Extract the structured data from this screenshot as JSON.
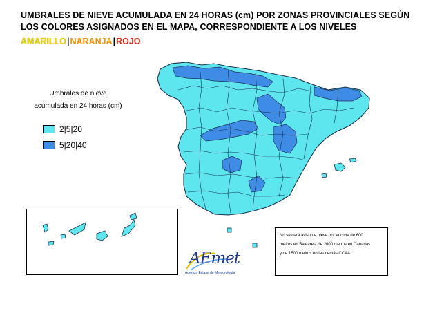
{
  "header": {
    "title": "UMBRALES DE NIEVE ACUMULADA EN 24 HORAS (cm) POR ZONAS PROVINCIALES SEGÚN LOS COLORES ASIGNADOS EN EL MAPA, CORRESPONDIENTE  A  LOS  NIVELES",
    "levels": [
      {
        "label": "AMARILLO",
        "color": "#e6d200"
      },
      {
        "label": "NARANJA",
        "color": "#f39200"
      },
      {
        "label": "ROJO",
        "color": "#e41f14"
      }
    ],
    "separator": "|"
  },
  "legend": {
    "title_line1": "Umbrales de nieve",
    "title_line2": "acumulada en 24 horas (cm)",
    "items": [
      {
        "label": "2|5|20",
        "color": "#5ee6ef"
      },
      {
        "label": "5|20|40",
        "color": "#3f8ce6"
      }
    ]
  },
  "map": {
    "colors": {
      "low": "#5ee6ef",
      "high": "#3f8ce6",
      "border": "#1a3050"
    }
  },
  "note": {
    "line1": "No se dará aviso de nieve por encima de 600",
    "line2": "metros en Baleares, de 2000 metros en Canarias",
    "line3": "y de 1500 metros en las demás CCAA."
  },
  "logo": {
    "name": "AEmet",
    "subtitle": "Agencia Estatal de Meteorología"
  }
}
